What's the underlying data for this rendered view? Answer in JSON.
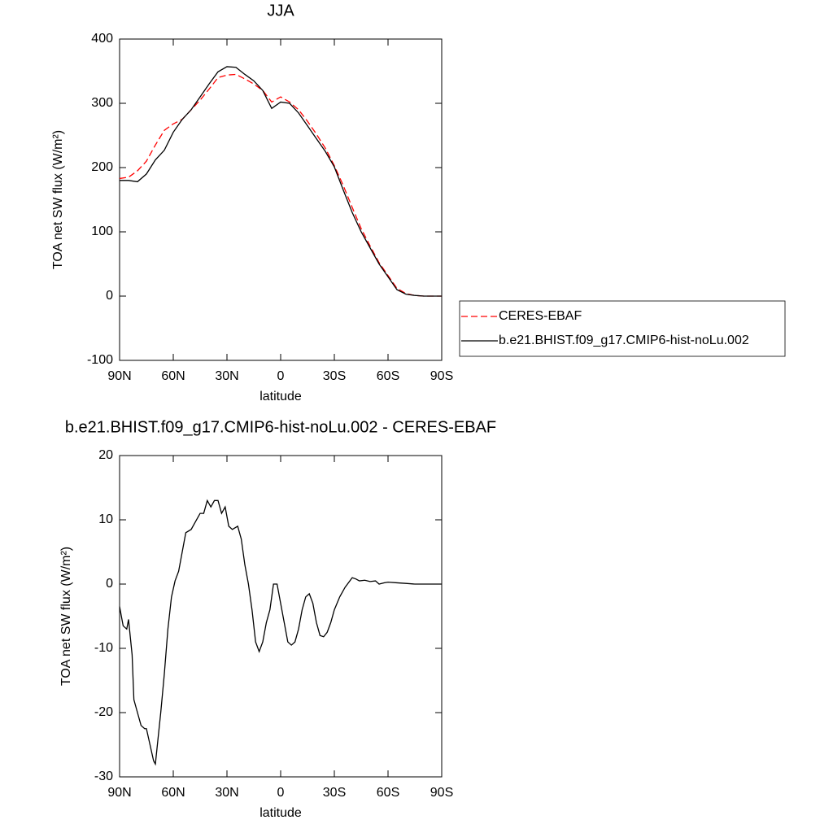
{
  "chart_data": [
    {
      "type": "line",
      "title": "JJA",
      "xlabel": "latitude",
      "ylabel": "TOA net SW flux (W/m²)",
      "x": [
        90,
        85,
        80,
        75,
        70,
        65,
        60,
        55,
        50,
        45,
        40,
        35,
        30,
        25,
        20,
        15,
        10,
        5,
        0,
        -5,
        -10,
        -15,
        -20,
        -25,
        -30,
        -35,
        -40,
        -45,
        -50,
        -55,
        -60,
        -65,
        -70,
        -75,
        -80,
        -85,
        -90
      ],
      "series": [
        {
          "name": "CERES-EBAF",
          "color": "#ff0000",
          "line_style": "dashed",
          "values": [
            183,
            185,
            195,
            210,
            235,
            258,
            268,
            275,
            290,
            305,
            322,
            340,
            344,
            345,
            338,
            330,
            320,
            302,
            310,
            302,
            290,
            272,
            252,
            230,
            203,
            172,
            138,
            105,
            78,
            52,
            32,
            12,
            4,
            1,
            0,
            0,
            0
          ]
        },
        {
          "name": "b.e21.BHIST.f09_g17.CMIP6-hist-noLu.002",
          "color": "#000000",
          "line_style": "solid",
          "values": [
            180,
            180,
            178,
            190,
            212,
            227,
            255,
            275,
            290,
            310,
            330,
            349,
            357,
            356,
            345,
            335,
            320,
            292,
            302,
            300,
            285,
            265,
            245,
            225,
            201,
            165,
            130,
            100,
            75,
            50,
            30,
            10,
            3,
            1,
            0,
            0,
            0
          ]
        }
      ],
      "xlim": [
        90,
        -90
      ],
      "xticks": [
        {
          "value": 90,
          "label": "90N"
        },
        {
          "value": 60,
          "label": "60N"
        },
        {
          "value": 30,
          "label": "30N"
        },
        0,
        {
          "value": -30,
          "label": "30S"
        },
        {
          "value": -60,
          "label": "60S"
        },
        {
          "value": -90,
          "label": "90S"
        }
      ],
      "ylim": [
        -100,
        400
      ],
      "yticks": [
        -100,
        0,
        100,
        200,
        300,
        400
      ],
      "legend": "outside-right"
    },
    {
      "type": "line",
      "title": "b.e21.BHIST.f09_g17.CMIP6-hist-noLu.002 - CERES-EBAF",
      "xlabel": "latitude",
      "ylabel": "TOA net SW flux (W/m²)",
      "x": [
        90,
        88,
        86,
        85,
        83,
        82,
        80,
        78,
        76,
        75,
        73,
        71,
        70,
        67,
        65,
        63,
        61,
        59,
        57,
        55,
        53,
        50,
        48,
        45,
        43,
        41,
        39,
        37,
        35,
        33,
        31,
        29,
        27,
        24,
        22,
        20,
        18,
        16,
        14,
        12,
        10,
        8,
        6,
        4,
        2,
        0,
        -2,
        -4,
        -6,
        -8,
        -10,
        -12,
        -14,
        -16,
        -18,
        -20,
        -22,
        -24,
        -26,
        -28,
        -30,
        -33,
        -36,
        -40,
        -42,
        -44,
        -47,
        -50,
        -53,
        -55,
        -58,
        -60,
        -65,
        -70,
        -75,
        -80,
        -90
      ],
      "values": [
        -3.5,
        -6.5,
        -7,
        -5.5,
        -11,
        -18,
        -20,
        -22,
        -22.5,
        -22.5,
        -25,
        -27.5,
        -28,
        -20,
        -14,
        -7,
        -2,
        0.5,
        2,
        5,
        8,
        8.5,
        9.5,
        11,
        11,
        13,
        12,
        13,
        13,
        11,
        12,
        9,
        8.5,
        9,
        7,
        3,
        0,
        -4,
        -9,
        -10.5,
        -9,
        -6,
        -4,
        0,
        0,
        -3,
        -6,
        -9,
        -9.5,
        -9,
        -7,
        -4,
        -2,
        -1.5,
        -3,
        -6,
        -8,
        -8.2,
        -7.5,
        -6,
        -4,
        -2,
        -0.5,
        1,
        0.8,
        0.5,
        0.6,
        0.4,
        0.5,
        0,
        0.2,
        0.3,
        0.2,
        0.1,
        0,
        0,
        0
      ],
      "color": "#000000",
      "xlim": [
        90,
        -90
      ],
      "xticks": [
        {
          "value": 90,
          "label": "90N"
        },
        {
          "value": 60,
          "label": "60N"
        },
        {
          "value": 30,
          "label": "30N"
        },
        0,
        {
          "value": -30,
          "label": "30S"
        },
        {
          "value": -60,
          "label": "60S"
        },
        {
          "value": -90,
          "label": "90S"
        }
      ],
      "ylim": [
        -30,
        20
      ],
      "yticks": [
        -30,
        -20,
        -10,
        0,
        10,
        20
      ]
    }
  ]
}
